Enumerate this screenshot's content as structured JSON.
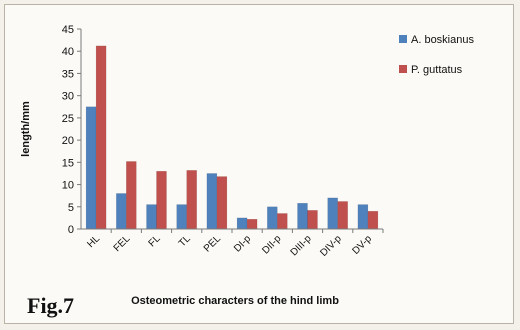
{
  "figure_label": "Fig.7",
  "chart_data": {
    "type": "bar",
    "title": "",
    "xlabel": "Osteometric characters of the hind limb",
    "ylabel": "length/mm",
    "ylim": [
      0,
      45
    ],
    "yticks": [
      0,
      5,
      10,
      15,
      20,
      25,
      30,
      35,
      40,
      45
    ],
    "grid": false,
    "legend_position": "right",
    "categories": [
      "HL",
      "FEL",
      "FL",
      "TL",
      "PEL",
      "DI-p",
      "DII-p",
      "DIII-p",
      "DIV-p",
      "DV-p"
    ],
    "series": [
      {
        "name": "A. boskianus",
        "color": "#4f81bd",
        "values": [
          27.5,
          8,
          5.5,
          5.5,
          12.5,
          2.5,
          5,
          5.8,
          7,
          5.5
        ]
      },
      {
        "name": "P. guttatus",
        "color": "#c0504d",
        "values": [
          41.2,
          15.2,
          13,
          13.2,
          11.8,
          2.2,
          3.5,
          4.2,
          6.2,
          4
        ]
      }
    ]
  }
}
